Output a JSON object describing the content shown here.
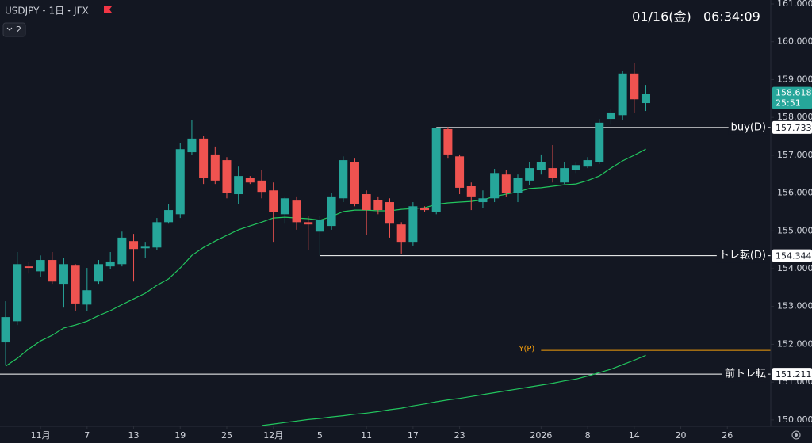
{
  "header": {
    "symbol": "USDJPY・1日・JFX",
    "count": "2",
    "clock": "01/16(金)   06:34:09"
  },
  "chart_data": {
    "type": "candlestick",
    "up_color": "#26a69a",
    "down_color": "#ef5350",
    "open": [
      152.05,
      152.61,
      154.06,
      153.93,
      154.23,
      153.6,
      154.08,
      153.05,
      153.66,
      154.06,
      154.12,
      154.73,
      154.54,
      154.56,
      155.23,
      155.44,
      157.08,
      157.44,
      157.02,
      156.87,
      155.97,
      156.39,
      156.33,
      156.07,
      155.44,
      155.8,
      155.23,
      154.98,
      155.13,
      155.86,
      156.81,
      155.97,
      155.82,
      155.76,
      155.17,
      154.71,
      155.61,
      155.49,
      157.69,
      156.97,
      156.18,
      155.76,
      155.86,
      156.49,
      156.01,
      156.33,
      156.6,
      156.66,
      156.28,
      156.62,
      156.7,
      156.81,
      157.96,
      158.06,
      159.16,
      158.38
    ],
    "high": [
      153.14,
      154.44,
      154.19,
      154.35,
      154.44,
      154.29,
      154.12,
      154.02,
      154.23,
      154.44,
      154.98,
      154.92,
      154.71,
      155.34,
      155.7,
      157.33,
      157.92,
      157.5,
      157.23,
      156.95,
      156.7,
      156.45,
      156.6,
      156.28,
      155.91,
      155.91,
      155.4,
      155.4,
      156.01,
      156.97,
      156.91,
      156.07,
      155.91,
      155.86,
      155.23,
      155.76,
      155.65,
      157.733,
      157.75,
      157.02,
      156.28,
      156.07,
      156.64,
      156.6,
      156.49,
      156.81,
      157.02,
      157.27,
      156.81,
      156.83,
      156.95,
      157.96,
      158.21,
      159.22,
      159.43,
      158.86
    ],
    "low": [
      151.46,
      152.51,
      153.87,
      153.77,
      153.6,
      152.97,
      152.89,
      152.89,
      153.6,
      153.98,
      154.06,
      153.66,
      154.29,
      154.5,
      155.19,
      155.34,
      157.0,
      156.24,
      156.24,
      155.86,
      155.7,
      156.24,
      155.86,
      154.71,
      155.19,
      155.03,
      154.5,
      154.344,
      155.03,
      155.76,
      155.65,
      154.9,
      155.44,
      154.82,
      154.4,
      154.61,
      155.49,
      155.44,
      156.91,
      155.97,
      155.55,
      155.61,
      155.76,
      155.91,
      155.76,
      156.22,
      156.49,
      156.28,
      156.24,
      156.53,
      156.66,
      156.77,
      157.81,
      157.92,
      158.11,
      158.17
    ],
    "close": [
      152.72,
      154.12,
      154.02,
      154.23,
      153.66,
      154.12,
      153.08,
      153.43,
      154.12,
      154.19,
      154.82,
      154.52,
      154.58,
      155.23,
      155.55,
      157.16,
      157.44,
      156.39,
      156.33,
      156.01,
      156.45,
      156.28,
      156.03,
      155.49,
      155.86,
      155.23,
      155.17,
      155.28,
      155.91,
      156.87,
      155.7,
      155.55,
      155.55,
      155.19,
      154.71,
      155.65,
      155.55,
      157.71,
      157.02,
      156.14,
      155.91,
      155.86,
      156.53,
      156.01,
      156.39,
      156.66,
      156.81,
      156.39,
      156.66,
      156.74,
      156.87,
      157.86,
      158.13,
      159.16,
      158.48,
      158.618
    ],
    "series": [
      {
        "color": "#22c55e",
        "values": [
          151.42,
          151.63,
          151.88,
          152.09,
          152.24,
          152.43,
          152.51,
          152.61,
          152.76,
          152.89,
          153.05,
          153.2,
          153.35,
          153.56,
          153.73,
          154.02,
          154.35,
          154.56,
          154.73,
          154.88,
          155.03,
          155.13,
          155.23,
          155.34,
          155.36,
          155.34,
          155.32,
          155.28,
          155.38,
          155.51,
          155.55,
          155.55,
          155.53,
          155.53,
          155.57,
          155.59,
          155.61,
          155.7,
          155.74,
          155.76,
          155.78,
          155.82,
          155.91,
          155.97,
          156.03,
          156.12,
          156.14,
          156.18,
          156.22,
          156.24,
          156.33,
          156.45,
          156.66,
          156.85,
          157.0,
          157.16
        ]
      },
      {
        "color": "#22c55e",
        "values": [
          null,
          null,
          null,
          null,
          null,
          null,
          null,
          null,
          null,
          null,
          null,
          null,
          null,
          null,
          null,
          null,
          null,
          null,
          null,
          null,
          null,
          null,
          149.85,
          149.89,
          149.93,
          149.97,
          150.01,
          150.04,
          150.08,
          150.11,
          150.15,
          150.18,
          150.22,
          150.27,
          150.31,
          150.37,
          150.42,
          150.48,
          150.53,
          150.57,
          150.62,
          150.67,
          150.72,
          150.77,
          150.82,
          150.87,
          150.92,
          150.97,
          151.03,
          151.08,
          151.16,
          151.25,
          151.34,
          151.46,
          151.58,
          151.71
        ]
      }
    ],
    "countdown": "25:51",
    "levels": [
      {
        "name": "buy(D)",
        "value": 157.733,
        "from": 37,
        "color": "#ffffff",
        "label_position": "right",
        "price_label": true
      },
      {
        "name": "トレ転(D)",
        "value": 154.344,
        "from": 27,
        "color": "#ffffff",
        "label_position": "right",
        "price_label": true
      },
      {
        "name": "前トレ転",
        "value": 151.211,
        "from": -0.48,
        "color": "#ffffff",
        "label_position": "right",
        "price_label": true
      },
      {
        "name": "Y(P)",
        "value": 151.84,
        "from": 46,
        "color": "#f59e0b",
        "label_position": "start",
        "price_label": false
      }
    ],
    "xlim": [
      -0.48,
      65.73
    ],
    "ylim": [
      149.83,
      161.105
    ],
    "xticks": [
      {
        "value": 3,
        "label": "11月"
      },
      {
        "value": 7,
        "label": "7"
      },
      {
        "value": 11,
        "label": "13"
      },
      {
        "value": 15,
        "label": "19"
      },
      {
        "value": 19,
        "label": "25"
      },
      {
        "value": 23,
        "label": "12月"
      },
      {
        "value": 27,
        "label": "5"
      },
      {
        "value": 31,
        "label": "11"
      },
      {
        "value": 35,
        "label": "17"
      },
      {
        "value": 39,
        "label": "23"
      },
      {
        "value": 46,
        "label": "2026"
      },
      {
        "value": 50,
        "label": "8"
      },
      {
        "value": 54,
        "label": "14"
      },
      {
        "value": 58,
        "label": "20"
      },
      {
        "value": 62,
        "label": "26"
      }
    ],
    "yticks": [
      {
        "value": 150,
        "label": "150.000"
      },
      {
        "value": 151,
        "label": "151.000"
      },
      {
        "value": 152,
        "label": "152.000"
      },
      {
        "value": 153,
        "label": "153.000"
      },
      {
        "value": 154,
        "label": "154.000"
      },
      {
        "value": 155,
        "label": "155.000"
      },
      {
        "value": 156,
        "label": "156.000"
      },
      {
        "value": 157,
        "label": "157.000"
      },
      {
        "value": 158,
        "label": "158.000"
      },
      {
        "value": 159,
        "label": "159.000"
      },
      {
        "value": 160,
        "label": "160.000"
      },
      {
        "value": 161,
        "label": "161.000"
      }
    ]
  }
}
